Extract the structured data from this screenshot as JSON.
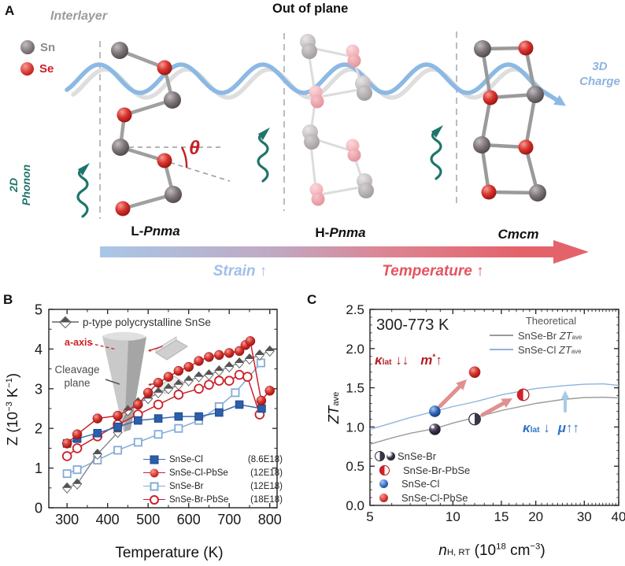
{
  "figure": {
    "panel_a": "A",
    "panel_b": "B",
    "panel_c": "C"
  },
  "panelA": {
    "interlayer_label": "Interlayer",
    "out_of_plane_label": "Out of plane",
    "atom_legend": {
      "sn_label": "Sn",
      "se_label": "Se"
    },
    "phonon_label_line1": "2D",
    "phonon_label_line2": "Phonon",
    "charge_label_line1": "3D",
    "charge_label_line2": "Charge",
    "theta_label": "θ",
    "structure_labels": {
      "l_prefix": "L-",
      "l_name": "Pnma",
      "h_prefix": "H-",
      "h_name": "Pnma",
      "cmcm_name": "Cmcm"
    },
    "strain_label": "Strain ↑",
    "temperature_label": "Temperature ↑",
    "colors": {
      "sn_sphere": "#7a7276",
      "se_sphere": "#d8342e",
      "ghost_sn": "#b5b0b3",
      "ghost_se": "#efa9b0",
      "phonon_teal": "#1f756b",
      "charge_wave_blue": "#8cb9e4",
      "strain_text": "#9fc0e8",
      "temperature_text": "#e4555e"
    }
  },
  "chart_data": [
    {
      "id": "B",
      "type": "line",
      "xlabel": "Temperature (K)",
      "ylabel": "Z (10^-3 K^-1)",
      "ylabel_parts": {
        "pre": "Z (10",
        "sup1": "−3",
        "mid": " K",
        "sup2": "−1",
        "end": ")"
      },
      "xlim": [
        255,
        818
      ],
      "ylim": [
        0,
        5
      ],
      "xticks": [
        300,
        400,
        500,
        600,
        700,
        800
      ],
      "yticks": [
        0,
        1,
        2,
        3,
        4,
        5
      ],
      "annotations": {
        "a_axis": "a-axis",
        "cleavage_line1": "Cleavage",
        "cleavage_line2": "plane"
      },
      "series": [
        {
          "name": "p-type polycrystalline SnSe",
          "note": "",
          "marker": "diamond-half",
          "color": "#8a8a8a",
          "x": [
            300,
            325,
            375,
            425,
            450,
            475,
            500,
            525,
            550,
            575,
            600,
            625,
            650,
            675,
            700,
            725,
            750,
            775,
            800
          ],
          "y": [
            0.5,
            0.6,
            1.35,
            1.9,
            2.45,
            2.65,
            2.75,
            2.9,
            3.0,
            3.1,
            3.2,
            3.3,
            3.35,
            3.45,
            3.55,
            3.65,
            3.75,
            3.85,
            3.95
          ]
        },
        {
          "name": "SnSe-Cl",
          "note": "(8.6E18)",
          "marker": "square-solid",
          "color": "#3c6cb4",
          "x": [
            300,
            325,
            375,
            425,
            475,
            525,
            575,
            625,
            675,
            725,
            780
          ],
          "y": [
            1.62,
            1.74,
            1.88,
            2.04,
            2.2,
            2.25,
            2.3,
            2.3,
            2.4,
            2.6,
            2.5
          ]
        },
        {
          "name": "SnSe-Cl-PbSe",
          "note": "(12E18)",
          "marker": "circle-solid",
          "color": "#cc2128",
          "x": [
            300,
            325,
            375,
            425,
            475,
            500,
            525,
            550,
            575,
            600,
            625,
            650,
            675,
            700,
            725,
            740,
            752,
            779,
            800
          ],
          "y": [
            1.62,
            1.85,
            2.25,
            2.32,
            2.6,
            2.9,
            3.15,
            3.3,
            3.45,
            3.55,
            3.7,
            3.8,
            3.85,
            3.9,
            3.95,
            4.1,
            4.2,
            2.7,
            2.95
          ]
        },
        {
          "name": "SnSe-Br",
          "note": "(12E18)",
          "marker": "square-open",
          "color": "#85abd6",
          "x": [
            300,
            325,
            375,
            425,
            475,
            525,
            575,
            625,
            675,
            715,
            778
          ],
          "y": [
            0.86,
            0.96,
            1.2,
            1.45,
            1.65,
            1.85,
            2.0,
            2.2,
            2.55,
            2.9,
            3.65
          ]
        },
        {
          "name": "SnSe-Br-PbSe",
          "note": "(18E18)",
          "marker": "circle-open",
          "color": "#cc2128",
          "x": [
            300,
            325,
            375,
            425,
            475,
            525,
            575,
            625,
            650,
            675,
            700,
            725,
            745,
            775
          ],
          "y": [
            1.3,
            1.5,
            1.8,
            2.1,
            2.35,
            2.6,
            2.85,
            3.0,
            3.1,
            3.2,
            3.2,
            3.35,
            3.3,
            2.35
          ]
        }
      ]
    },
    {
      "id": "C",
      "type": "line+scatter",
      "xscale": "log",
      "xlabel": "n_H,RT (10^18 cm^-3)",
      "ylabel": "ZT_ave",
      "ylabel_parts": {
        "it": "ZT",
        "sub": "ave"
      },
      "xlabel_parts": {
        "it": "n",
        "sub": "H, RT",
        "mid": " (10",
        "sup": "18",
        "mid2": " cm",
        "sup2": "−3",
        "end": ")"
      },
      "xlim": [
        5,
        40
      ],
      "ylim": [
        0,
        2.5
      ],
      "xticks": [
        5,
        10,
        15,
        20,
        30,
        40
      ],
      "xtick_labels": [
        "5",
        "10",
        "15",
        "20",
        "30",
        "40"
      ],
      "ytick_labels": [
        "0.0",
        "0.5",
        "1.0",
        "1.5",
        "2.0",
        "2.5"
      ],
      "texts": {
        "range": "300-773 K",
        "theoretical": "Theoretical",
        "line_legend": [
          {
            "pre": "SnSe-Br ",
            "it": "ZT",
            "sub": "ave"
          },
          {
            "pre": "SnSe-Cl ",
            "it": "ZT",
            "sub": "ave"
          }
        ],
        "red_annotation": {
          "kappa": "κ",
          "sub": "lat",
          "arrows": "↓↓",
          "m": "m",
          "sup": "*",
          "up": "↑"
        },
        "blue_annotation": {
          "kappa": "κ",
          "sub": "lat",
          "down": "↓",
          "mu": "μ",
          "up": "↑↑"
        }
      },
      "lines": [
        {
          "name": "SnSe-Br ZTave",
          "color": "#9a9a9a",
          "x": [
            5,
            6,
            7,
            8.6,
            10,
            12,
            15,
            20,
            25,
            30,
            35,
            40
          ],
          "y": [
            0.78,
            0.86,
            0.92,
            0.98,
            1.05,
            1.12,
            1.21,
            1.3,
            1.35,
            1.375,
            1.38,
            1.37
          ]
        },
        {
          "name": "SnSe-Cl ZTave",
          "color": "#8fb4da",
          "x": [
            5,
            6,
            7,
            8.6,
            10,
            12,
            15,
            20,
            25,
            30,
            35,
            40
          ],
          "y": [
            0.97,
            1.05,
            1.12,
            1.2,
            1.26,
            1.32,
            1.41,
            1.49,
            1.525,
            1.545,
            1.55,
            1.53
          ]
        }
      ],
      "points": [
        {
          "name": "SnSe-Br",
          "x": 8.6,
          "y": 0.97,
          "style": "sphere-dark"
        },
        {
          "name": "SnSe-Br",
          "x": 12,
          "y": 1.1,
          "style": "half-dark"
        },
        {
          "name": "SnSe-Br-PbSe",
          "x": 18,
          "y": 1.41,
          "style": "half-red"
        },
        {
          "name": "SnSe-Cl",
          "x": 8.6,
          "y": 1.2,
          "style": "sphere-blue"
        },
        {
          "name": "SnSe-Cl-PbSe",
          "x": 12,
          "y": 1.7,
          "style": "sphere-red"
        }
      ],
      "point_legend": [
        {
          "label": "SnSe-Br"
        },
        {
          "label": "SnSe-Br-PbSe"
        },
        {
          "label": "SnSe-Cl"
        },
        {
          "label": "SnSe-Cl-PbSe"
        }
      ]
    }
  ]
}
